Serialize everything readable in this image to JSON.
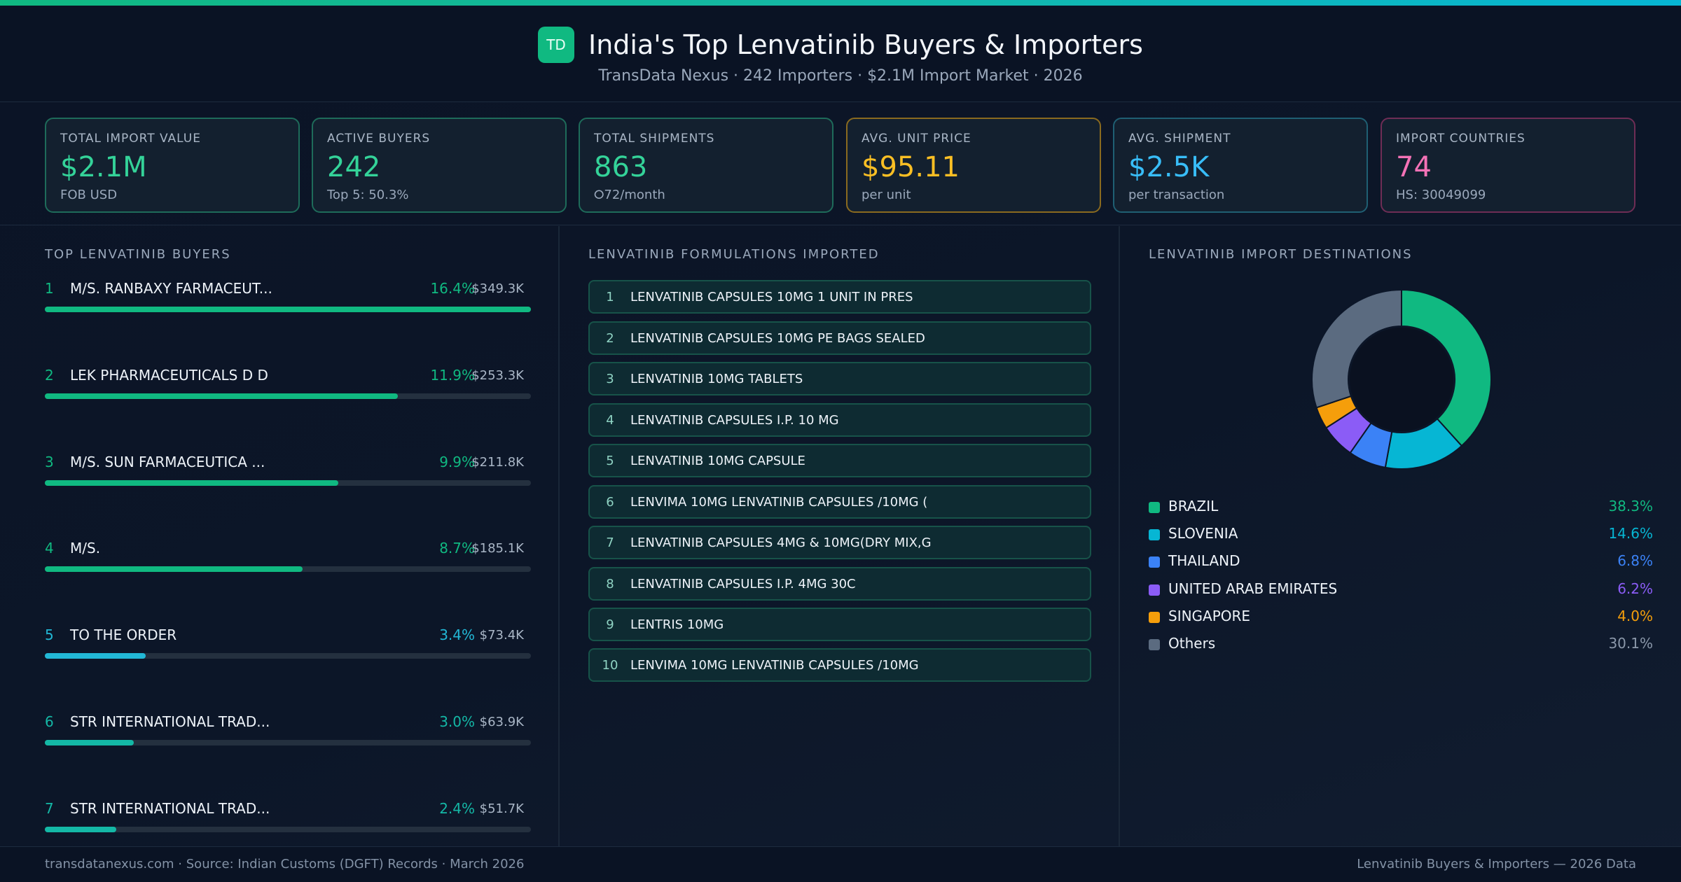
{
  "header": {
    "logo_text": "TD",
    "title": "India's Top Lenvatinib Buyers & Importers",
    "subtitle": "TransData Nexus · 242 Importers · $2.1M Import Market · 2026"
  },
  "kpis": [
    {
      "label": "TOTAL IMPORT VALUE",
      "value": "$2.1M",
      "sub": "FOB USD",
      "color": "#34d399",
      "border": "#1e6b5a"
    },
    {
      "label": "ACTIVE BUYERS",
      "value": "242",
      "sub": "Top 5: 50.3%",
      "color": "#34d399",
      "border": "#1e6b5a"
    },
    {
      "label": "TOTAL SHIPMENTS",
      "value": "863",
      "sub": "⭘72/month",
      "color": "#34d399",
      "border": "#1e6b5a"
    },
    {
      "label": "AVG. UNIT PRICE",
      "value": "$95.11",
      "sub": "per unit",
      "color": "#fbbf24",
      "border": "#8a6a1f"
    },
    {
      "label": "AVG. SHIPMENT",
      "value": "$2.5K",
      "sub": "per transaction",
      "color": "#38bdf8",
      "border": "#1f5f73"
    },
    {
      "label": "IMPORT COUNTRIES",
      "value": "74",
      "sub": "HS: 30049099",
      "color": "#f472b6",
      "border": "#6e2d55"
    }
  ],
  "buyers_panel": {
    "title": "TOP LENVATINIB BUYERS",
    "items": [
      {
        "rank": "1",
        "name": "M/S. RANBAXY FARMACEUT...",
        "pct": "16.4%",
        "value": "$349.3K",
        "share": 16.4,
        "color": "#10b981"
      },
      {
        "rank": "2",
        "name": "LEK PHARMACEUTICALS D D",
        "pct": "11.9%",
        "value": "$253.3K",
        "share": 11.9,
        "color": "#10b981"
      },
      {
        "rank": "3",
        "name": "M/S. SUN FARMACEUTICA ...",
        "pct": "9.9%",
        "value": "$211.8K",
        "share": 9.9,
        "color": "#10b981"
      },
      {
        "rank": "4",
        "name": "M/S.",
        "pct": "8.7%",
        "value": "$185.1K",
        "share": 8.7,
        "color": "#10b981"
      },
      {
        "rank": "5",
        "name": "TO THE ORDER",
        "pct": "3.4%",
        "value": "$73.4K",
        "share": 3.4,
        "color": "#22b8d6"
      },
      {
        "rank": "6",
        "name": "STR INTERNATIONAL TRAD...",
        "pct": "3.0%",
        "value": "$63.9K",
        "share": 3.0,
        "color": "#14b8a6"
      },
      {
        "rank": "7",
        "name": "STR INTERNATIONAL TRAD...",
        "pct": "2.4%",
        "value": "$51.7K",
        "share": 2.4,
        "color": "#14b8a6"
      }
    ]
  },
  "formulations_panel": {
    "title": "LENVATINIB FORMULATIONS IMPORTED",
    "items": [
      {
        "num": "1",
        "text": "LENVATINIB CAPSULES 10MG 1 UNIT IN PRES"
      },
      {
        "num": "2",
        "text": "LENVATINIB CAPSULES 10MG PE BAGS SEALED"
      },
      {
        "num": "3",
        "text": "LENVATINIB 10MG TABLETS"
      },
      {
        "num": "4",
        "text": "LENVATINIB CAPSULES I.P. 10 MG"
      },
      {
        "num": "5",
        "text": "LENVATINIB 10MG CAPSULE"
      },
      {
        "num": "6",
        "text": "LENVIMA 10MG LENVATINIB CAPSULES /10MG ("
      },
      {
        "num": "7",
        "text": "LENVATINIB CAPSULES 4MG & 10MG(DRY MIX,G"
      },
      {
        "num": "8",
        "text": "LENVATINIB CAPSULES I.P. 4MG 30C"
      },
      {
        "num": "9",
        "text": "LENTRIS 10MG"
      },
      {
        "num": "10",
        "text": "LENVIMA 10MG LENVATINIB CAPSULES /10MG"
      }
    ]
  },
  "chart_data": {
    "type": "pie",
    "title": "LENVATINIB IMPORT DESTINATIONS",
    "categories": [
      "BRAZIL",
      "SLOVENIA",
      "THAILAND",
      "UNITED ARAB EMIRATES",
      "SINGAPORE",
      "Others"
    ],
    "values": [
      38.3,
      14.6,
      6.8,
      6.2,
      4.0,
      30.1
    ],
    "labels": [
      "38.3%",
      "14.6%",
      "6.8%",
      "6.2%",
      "4.0%",
      "30.1%"
    ],
    "colors": [
      "#10b981",
      "#06b6d4",
      "#3b82f6",
      "#8b5cf6",
      "#f59e0b",
      "#5b6b80"
    ],
    "donut": true,
    "legend": "bottom"
  },
  "footer": {
    "left": "transdatanexus.com · Source: Indian Customs (DGFT) Records · March 2026",
    "right": "Lenvatinib Buyers & Importers — 2026 Data"
  }
}
